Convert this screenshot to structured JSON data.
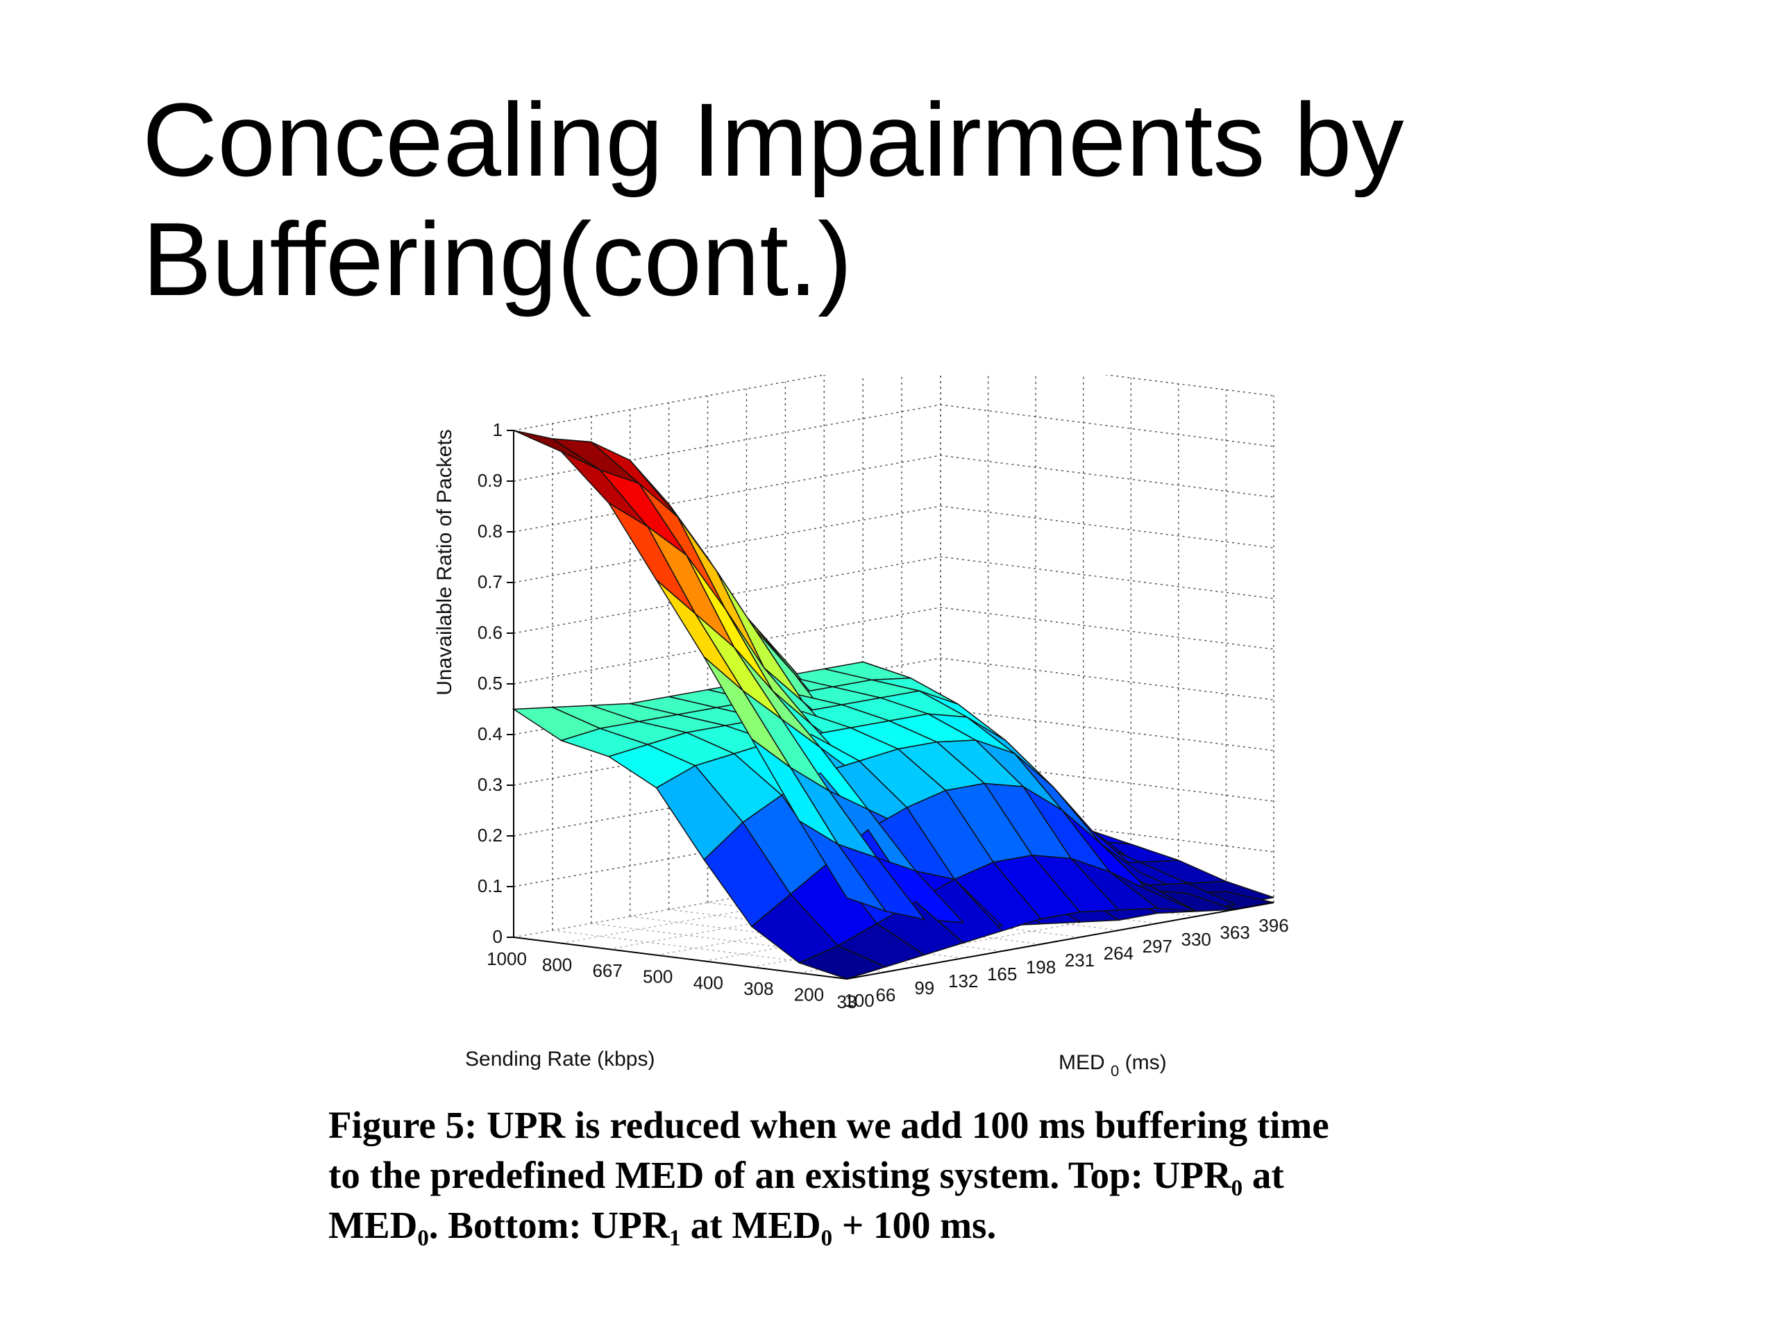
{
  "slide": {
    "title_line1": "Concealing Impairments by",
    "title_line2": "Buffering(cont.)"
  },
  "caption": {
    "line1": "Figure 5: UPR is reduced when we add 100 ms buffering time",
    "line2": "to the predefined MED of an existing system.  Top: UPR₀ at",
    "line3": "MED₀. Bottom: UPR₁ at MED₀ + 100 ms."
  },
  "chart_data": {
    "type": "surface3d",
    "zlabel": "Unavailable Ratio of Packets",
    "ylabel": "Sending Rate (kbps)",
    "xlabel_main": "MED",
    "xlabel_sub": "0",
    "xlabel_unit": " (ms)",
    "x_ticks": [
      33,
      66,
      99,
      132,
      165,
      198,
      231,
      264,
      297,
      330,
      363,
      396
    ],
    "y_ticks": [
      1000,
      800,
      667,
      500,
      400,
      308,
      200,
      100
    ],
    "z_ticks": [
      "0",
      "0.1",
      "0.2",
      "0.3",
      "0.4",
      "0.5",
      "0.6",
      "0.7",
      "0.8",
      "0.9",
      "1"
    ],
    "zlim": [
      0,
      1
    ],
    "grid": true,
    "colormap": "jet",
    "series": [
      {
        "name": "",
        "description_x": [
          33,
          66,
          99,
          132,
          165,
          198,
          231,
          264,
          297,
          330,
          363,
          396
        ],
        "z_by_sending_rate": [
          [
            1.0,
            0.97,
            0.95,
            0.9,
            0.8,
            0.68,
            0.55,
            0.45,
            0.35,
            0.25,
            0.2,
            0.15
          ],
          [
            0.97,
            0.92,
            0.88,
            0.8,
            0.68,
            0.55,
            0.45,
            0.35,
            0.28,
            0.22,
            0.18,
            0.14
          ],
          [
            0.88,
            0.82,
            0.75,
            0.63,
            0.5,
            0.42,
            0.34,
            0.27,
            0.22,
            0.18,
            0.15,
            0.12
          ],
          [
            0.74,
            0.66,
            0.58,
            0.48,
            0.4,
            0.33,
            0.27,
            0.22,
            0.18,
            0.15,
            0.12,
            0.1
          ],
          [
            0.6,
            0.52,
            0.45,
            0.38,
            0.31,
            0.26,
            0.21,
            0.17,
            0.14,
            0.12,
            0.1,
            0.08
          ],
          [
            0.45,
            0.38,
            0.32,
            0.27,
            0.22,
            0.18,
            0.15,
            0.12,
            0.1,
            0.08,
            0.07,
            0.06
          ],
          [
            0.3,
            0.24,
            0.2,
            0.16,
            0.13,
            0.1,
            0.08,
            0.07,
            0.06,
            0.05,
            0.04,
            0.03
          ],
          [
            0.16,
            0.12,
            0.09,
            0.07,
            0.05,
            0.04,
            0.03,
            0.02,
            0.02,
            0.01,
            0.01,
            0.01
          ]
        ]
      },
      {
        "name": "",
        "z_by_sending_rate": [
          [
            0.45,
            0.44,
            0.43,
            0.42,
            0.42,
            0.42,
            0.42,
            0.42,
            0.42,
            0.42,
            0.32,
            0.2
          ],
          [
            0.4,
            0.41,
            0.41,
            0.41,
            0.41,
            0.41,
            0.41,
            0.41,
            0.41,
            0.4,
            0.28,
            0.16
          ],
          [
            0.38,
            0.39,
            0.4,
            0.4,
            0.4,
            0.4,
            0.4,
            0.4,
            0.4,
            0.36,
            0.24,
            0.12
          ],
          [
            0.33,
            0.36,
            0.37,
            0.38,
            0.38,
            0.38,
            0.38,
            0.38,
            0.36,
            0.3,
            0.18,
            0.08
          ],
          [
            0.2,
            0.26,
            0.3,
            0.33,
            0.34,
            0.35,
            0.35,
            0.34,
            0.3,
            0.22,
            0.12,
            0.05
          ],
          [
            0.08,
            0.13,
            0.18,
            0.23,
            0.26,
            0.28,
            0.28,
            0.26,
            0.2,
            0.12,
            0.05,
            0.02
          ],
          [
            0.02,
            0.04,
            0.07,
            0.1,
            0.13,
            0.15,
            0.15,
            0.13,
            0.09,
            0.04,
            0.02,
            0.01
          ],
          [
            0.0,
            0.01,
            0.02,
            0.03,
            0.04,
            0.05,
            0.05,
            0.04,
            0.03,
            0.01,
            0.0,
            0.0
          ]
        ]
      }
    ]
  }
}
